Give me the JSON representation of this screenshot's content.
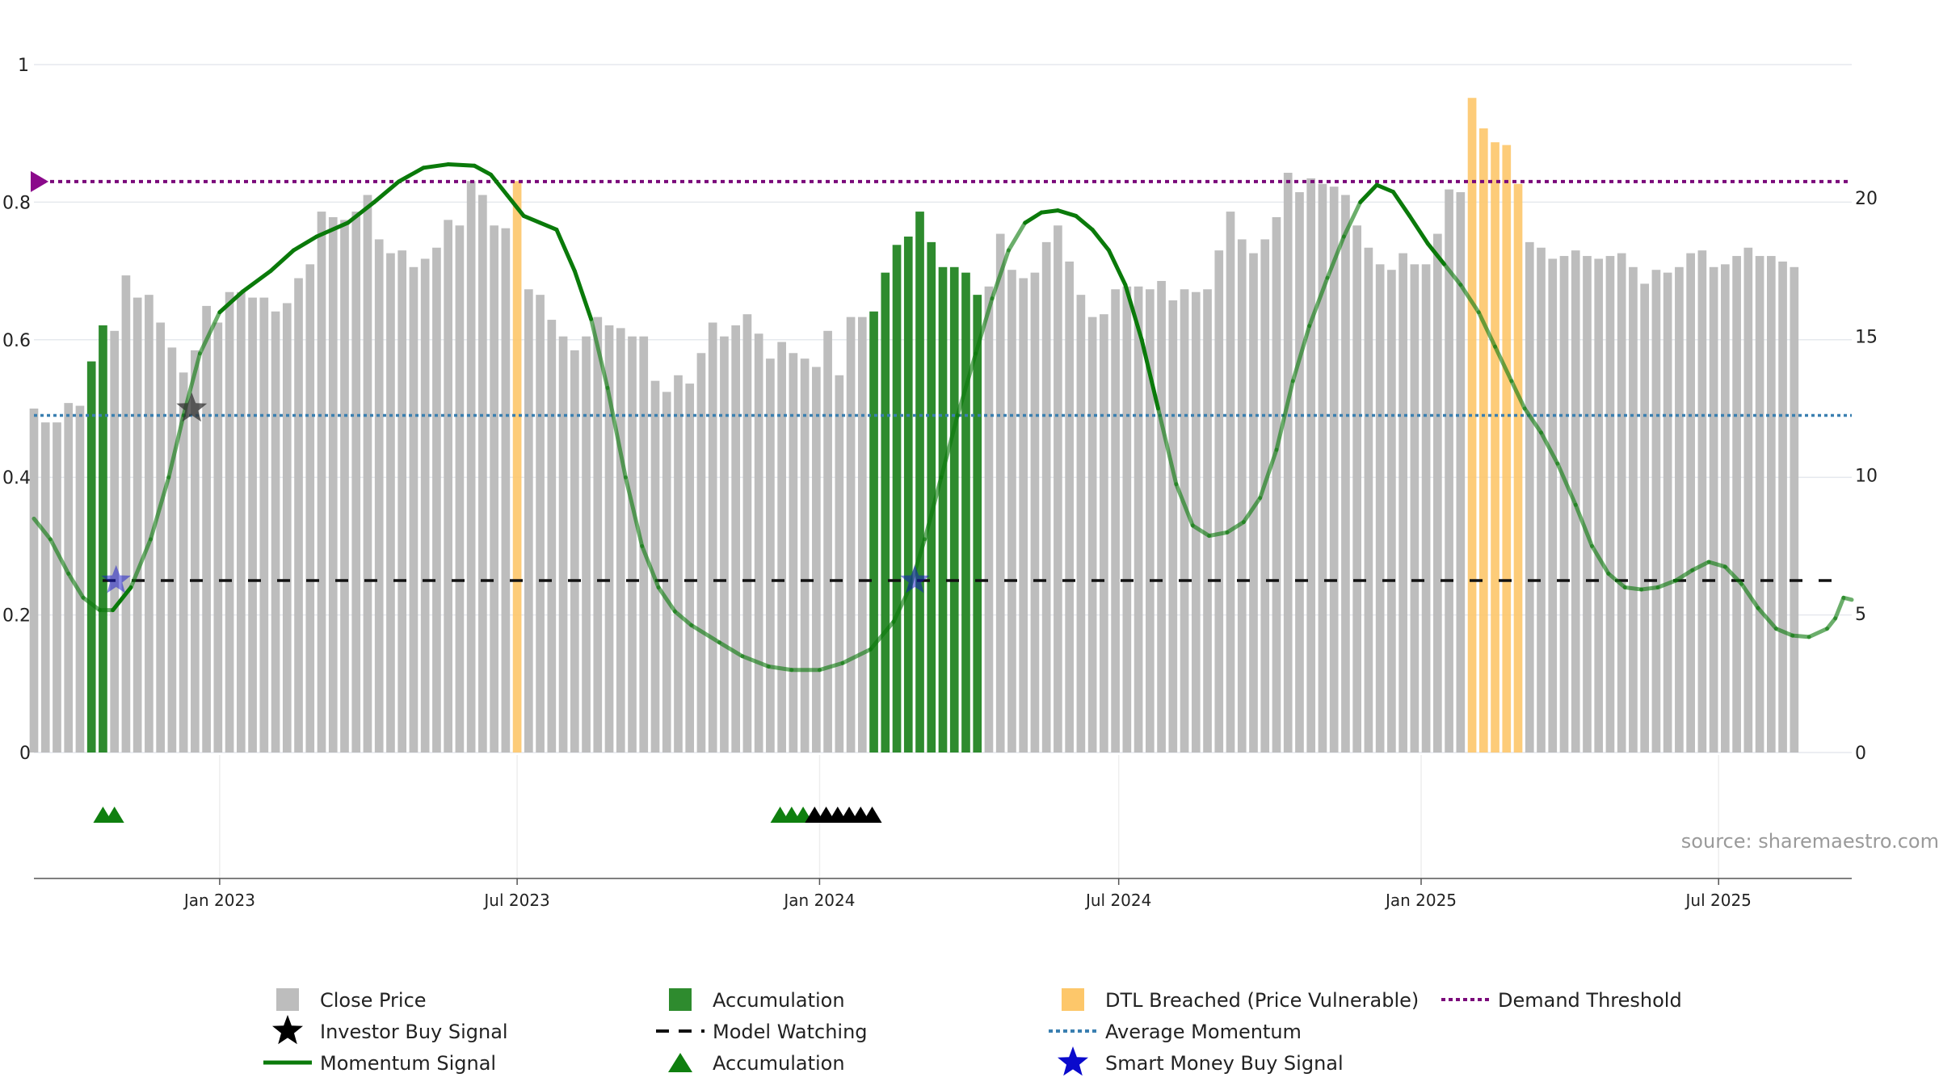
{
  "chart_data": {
    "type": "bar+line",
    "source": "source: sharemaestro.com",
    "left_axis": {
      "ticks": [
        0,
        0.2,
        0.4,
        0.6,
        0.8,
        1
      ],
      "tick_labels": [
        "0",
        "0.2",
        "0.4",
        "0.6",
        "0.8",
        "1"
      ],
      "range": [
        0,
        1
      ]
    },
    "right_axis": {
      "ticks": [
        0,
        5,
        10,
        15,
        20
      ],
      "tick_labels": [
        "0",
        "5",
        "10",
        "15",
        "20"
      ],
      "range": [
        0,
        24.8
      ]
    },
    "x_axis": {
      "start": "2022-09-10",
      "end": "2025-09-20",
      "ticks": [
        {
          "date": "2023-01-01",
          "label": "Jan 2023"
        },
        {
          "date": "2023-07-01",
          "label": "Jul 2023"
        },
        {
          "date": "2024-01-01",
          "label": "Jan 2024"
        },
        {
          "date": "2024-07-01",
          "label": "Jul 2024"
        },
        {
          "date": "2025-01-01",
          "label": "Jan 2025"
        },
        {
          "date": "2025-07-01",
          "label": "Jul 2025"
        }
      ]
    },
    "colors": {
      "close_price": "#bdbdbd",
      "accumulation": "#2e8b2e",
      "dtl_breached": "#fdc76a",
      "momentum": "#0a7a0a",
      "model_watching": "#111111",
      "average_momentum": "#3a7fb0",
      "demand_threshold": "#7a0a7a",
      "smart_money": "#1515cc",
      "investor_buy": "#333333"
    },
    "price_series": {
      "start_date": "2022-09-10",
      "interval_days": 7,
      "values": [
        12.4,
        11.9,
        11.9,
        12.6,
        12.5,
        14.1,
        15.4,
        15.2,
        17.2,
        16.4,
        16.5,
        15.5,
        14.6,
        13.7,
        14.5,
        16.1,
        15.5,
        16.6,
        16.6,
        16.4,
        16.4,
        15.9,
        16.2,
        17.1,
        17.6,
        19.5,
        19.3,
        19.2,
        19.5,
        20.1,
        18.5,
        18.0,
        18.1,
        17.5,
        17.8,
        18.2,
        19.2,
        19.0,
        20.6,
        20.1,
        19.0,
        18.9,
        18.6,
        16.7,
        16.5,
        15.6,
        15.0,
        14.5,
        15.0,
        15.7,
        15.4,
        15.3,
        15.0,
        15.0,
        13.4,
        13.0,
        13.6,
        13.3,
        14.4,
        15.5,
        15.0,
        15.4,
        15.8,
        15.1,
        14.2,
        14.8,
        14.4,
        14.2,
        13.9,
        15.2,
        13.6,
        15.7,
        15.7,
        15.9,
        17.3,
        18.3,
        18.6,
        19.5,
        18.4,
        17.5,
        17.5,
        17.3,
        16.5,
        16.8,
        18.7,
        17.4,
        17.1,
        17.3,
        18.4,
        19.0,
        17.7,
        16.5,
        15.7,
        15.8,
        16.7,
        16.8,
        16.8,
        16.7,
        17.0,
        16.3,
        16.7,
        16.6,
        16.7,
        18.1,
        19.5,
        18.5,
        18.0,
        18.5,
        19.3,
        20.9,
        20.2,
        20.7,
        20.5,
        20.4,
        20.1,
        19.0,
        18.2,
        17.6,
        17.4,
        18.0,
        17.6,
        17.6,
        18.7,
        20.3,
        20.2,
        19.0,
        19.7,
        20.5,
        18.8,
        18.7,
        18.4,
        18.2,
        17.8,
        17.9,
        18.1,
        17.9,
        17.8,
        17.9,
        18.0,
        17.5,
        16.9,
        17.4,
        17.3,
        17.5,
        18.0,
        18.1,
        17.5,
        17.6,
        17.9,
        18.2,
        17.9,
        17.9,
        17.7,
        17.5
      ],
      "accumulation_indices": [
        5,
        6,
        73,
        74,
        75,
        76,
        77,
        78,
        79,
        80,
        81,
        82
      ],
      "dtl_indices": [
        42,
        125,
        126,
        127,
        128,
        129
      ]
    },
    "dtl_override_values": [
      [
        42,
        20.6
      ],
      [
        125,
        23.6
      ],
      [
        126,
        22.5
      ],
      [
        127,
        22.0
      ],
      [
        128,
        21.9
      ],
      [
        129,
        20.5
      ]
    ],
    "momentum_signal": [
      [
        "2022-09-10",
        0.34
      ],
      [
        "2022-09-20",
        0.31
      ],
      [
        "2022-10-01",
        0.26
      ],
      [
        "2022-10-10",
        0.225
      ],
      [
        "2022-10-20",
        0.207
      ],
      [
        "2022-10-28",
        0.207
      ],
      [
        "2022-11-08",
        0.24
      ],
      [
        "2022-11-20",
        0.31
      ],
      [
        "2022-12-01",
        0.4
      ],
      [
        "2022-12-10",
        0.49
      ],
      [
        "2022-12-20",
        0.58
      ],
      [
        "2023-01-01",
        0.64
      ],
      [
        "2023-01-15",
        0.67
      ],
      [
        "2023-02-01",
        0.7
      ],
      [
        "2023-02-15",
        0.73
      ],
      [
        "2023-03-01",
        0.75
      ],
      [
        "2023-03-20",
        0.77
      ],
      [
        "2023-04-05",
        0.8
      ],
      [
        "2023-04-20",
        0.83
      ],
      [
        "2023-05-05",
        0.85
      ],
      [
        "2023-05-20",
        0.855
      ],
      [
        "2023-06-05",
        0.853
      ],
      [
        "2023-06-15",
        0.84
      ],
      [
        "2023-06-25",
        0.81
      ],
      [
        "2023-07-05",
        0.78
      ],
      [
        "2023-07-15",
        0.77
      ],
      [
        "2023-07-25",
        0.76
      ],
      [
        "2023-08-05",
        0.7
      ],
      [
        "2023-08-15",
        0.63
      ],
      [
        "2023-08-25",
        0.53
      ],
      [
        "2023-09-05",
        0.4
      ],
      [
        "2023-09-15",
        0.3
      ],
      [
        "2023-09-25",
        0.24
      ],
      [
        "2023-10-05",
        0.205
      ],
      [
        "2023-10-15",
        0.185
      ],
      [
        "2023-11-01",
        0.16
      ],
      [
        "2023-11-15",
        0.14
      ],
      [
        "2023-12-01",
        0.125
      ],
      [
        "2023-12-15",
        0.12
      ],
      [
        "2024-01-01",
        0.12
      ],
      [
        "2024-01-15",
        0.13
      ],
      [
        "2024-02-01",
        0.15
      ],
      [
        "2024-02-15",
        0.19
      ],
      [
        "2024-02-25",
        0.24
      ],
      [
        "2024-03-05",
        0.31
      ],
      [
        "2024-03-15",
        0.4
      ],
      [
        "2024-03-25",
        0.49
      ],
      [
        "2024-04-05",
        0.58
      ],
      [
        "2024-04-15",
        0.66
      ],
      [
        "2024-04-25",
        0.73
      ],
      [
        "2024-05-05",
        0.77
      ],
      [
        "2024-05-15",
        0.785
      ],
      [
        "2024-05-25",
        0.788
      ],
      [
        "2024-06-05",
        0.78
      ],
      [
        "2024-06-15",
        0.76
      ],
      [
        "2024-06-25",
        0.73
      ],
      [
        "2024-07-05",
        0.68
      ],
      [
        "2024-07-15",
        0.6
      ],
      [
        "2024-07-25",
        0.5
      ],
      [
        "2024-08-05",
        0.39
      ],
      [
        "2024-08-15",
        0.33
      ],
      [
        "2024-08-25",
        0.315
      ],
      [
        "2024-09-05",
        0.32
      ],
      [
        "2024-09-15",
        0.335
      ],
      [
        "2024-09-25",
        0.37
      ],
      [
        "2024-10-05",
        0.44
      ],
      [
        "2024-10-15",
        0.54
      ],
      [
        "2024-10-25",
        0.62
      ],
      [
        "2024-11-05",
        0.69
      ],
      [
        "2024-11-15",
        0.75
      ],
      [
        "2024-11-25",
        0.8
      ],
      [
        "2024-12-05",
        0.825
      ],
      [
        "2024-12-15",
        0.815
      ],
      [
        "2024-12-25",
        0.78
      ],
      [
        "2025-01-05",
        0.74
      ],
      [
        "2025-01-15",
        0.71
      ],
      [
        "2025-01-25",
        0.68
      ],
      [
        "2025-02-05",
        0.64
      ],
      [
        "2025-02-15",
        0.59
      ],
      [
        "2025-02-25",
        0.54
      ],
      [
        "2025-03-05",
        0.5
      ],
      [
        "2025-03-15",
        0.465
      ],
      [
        "2025-03-25",
        0.42
      ],
      [
        "2025-04-05",
        0.36
      ],
      [
        "2025-04-15",
        0.3
      ],
      [
        "2025-04-25",
        0.26
      ],
      [
        "2025-05-05",
        0.24
      ],
      [
        "2025-05-15",
        0.237
      ],
      [
        "2025-05-25",
        0.24
      ],
      [
        "2025-06-05",
        0.25
      ],
      [
        "2025-06-15",
        0.265
      ],
      [
        "2025-06-25",
        0.277
      ],
      [
        "2025-07-05",
        0.27
      ],
      [
        "2025-07-15",
        0.245
      ],
      [
        "2025-07-25",
        0.21
      ],
      [
        "2025-08-05",
        0.18
      ],
      [
        "2025-08-15",
        0.17
      ],
      [
        "2025-08-25",
        0.168
      ],
      [
        "2025-09-05",
        0.18
      ],
      [
        "2025-09-10",
        0.195
      ],
      [
        "2025-09-15",
        0.225
      ],
      [
        "2025-09-20",
        0.222
      ]
    ],
    "momentum_fade_dates": [
      [
        "2022-09-10",
        "2022-10-25"
      ],
      [
        "2022-11-05",
        "2023-01-01"
      ],
      [
        "2023-08-20",
        "2024-05-05"
      ],
      [
        "2024-07-20",
        "2024-11-25"
      ],
      [
        "2025-01-20",
        "2025-09-20"
      ]
    ],
    "model_watching_level": 0.25,
    "average_momentum_level": 0.49,
    "demand_threshold_level": 0.83,
    "smart_money_buy_signals": [
      [
        "2022-10-30",
        0.25
      ],
      [
        "2024-02-28",
        0.25
      ]
    ],
    "investor_buy_signals": [
      [
        "2022-12-15",
        0.5
      ]
    ],
    "accumulation_triangles": [
      "2022-10-22",
      "2022-10-29",
      "2023-12-08",
      "2023-12-15",
      "2023-12-22"
    ],
    "model_watching_triangles": [
      "2023-12-29",
      "2024-01-05",
      "2024-01-12",
      "2024-01-19",
      "2024-01-26",
      "2024-02-02"
    ],
    "legend": [
      {
        "key": "close_price",
        "label": "Close Price",
        "marker": "square"
      },
      {
        "key": "investor_buy",
        "label": "Investor Buy Signal",
        "marker": "star"
      },
      {
        "key": "momentum",
        "label": "Momentum Signal",
        "marker": "line"
      },
      {
        "key": "accumulation",
        "label": "Accumulation",
        "marker": "square"
      },
      {
        "key": "model_watching",
        "label": "Model Watching",
        "marker": "dashed"
      },
      {
        "key": "accumulation",
        "label": "Accumulation",
        "marker": "triangle"
      },
      {
        "key": "dtl_breached",
        "label": "DTL Breached (Price Vulnerable)",
        "marker": "square"
      },
      {
        "key": "average_momentum",
        "label": "Average Momentum",
        "marker": "dotted"
      },
      {
        "key": "smart_money",
        "label": "Smart Money Buy Signal",
        "marker": "star"
      },
      {
        "key": "demand_threshold",
        "label": "Demand Threshold",
        "marker": "dotted-purple"
      }
    ]
  }
}
